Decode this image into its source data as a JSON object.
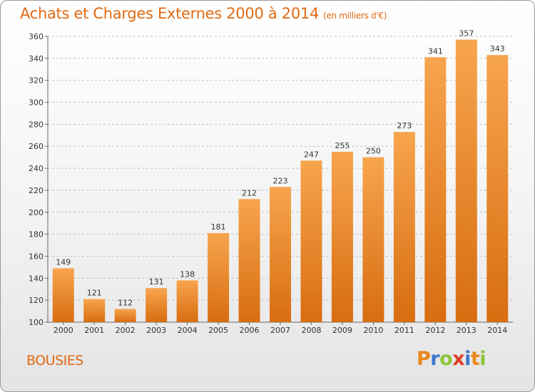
{
  "chart_data": {
    "type": "bar",
    "title": "Achats et Charges Externes 2000 à 2014",
    "subtitle": "(en milliers d'€)",
    "categories": [
      "2000",
      "2001",
      "2002",
      "2003",
      "2004",
      "2005",
      "2006",
      "2007",
      "2008",
      "2009",
      "2010",
      "2011",
      "2012",
      "2013",
      "2014"
    ],
    "values": [
      149,
      121,
      112,
      131,
      138,
      181,
      212,
      223,
      247,
      255,
      250,
      273,
      341,
      357,
      343
    ],
    "xlabel": "",
    "ylabel": "",
    "ylim": [
      100,
      360
    ],
    "yticks": [
      100,
      120,
      140,
      160,
      180,
      200,
      220,
      240,
      260,
      280,
      300,
      320,
      340,
      360
    ],
    "grid": true,
    "legend": "none",
    "bar_color_top": "#f7a54e",
    "bar_color_bottom": "#d86d10"
  },
  "footer": {
    "commune": "BOUSIES",
    "logo_letters": [
      "P",
      "r",
      "o",
      "x",
      "i",
      "t",
      "i"
    ],
    "logo_colors": [
      "#e8881c",
      "#3c78c8",
      "#8cc43c",
      "#e03c28",
      "#3c78c8",
      "#e8881c",
      "#8cc43c"
    ]
  },
  "colors": {
    "accent": "#e06a12",
    "grid": "#bfbfbf"
  }
}
